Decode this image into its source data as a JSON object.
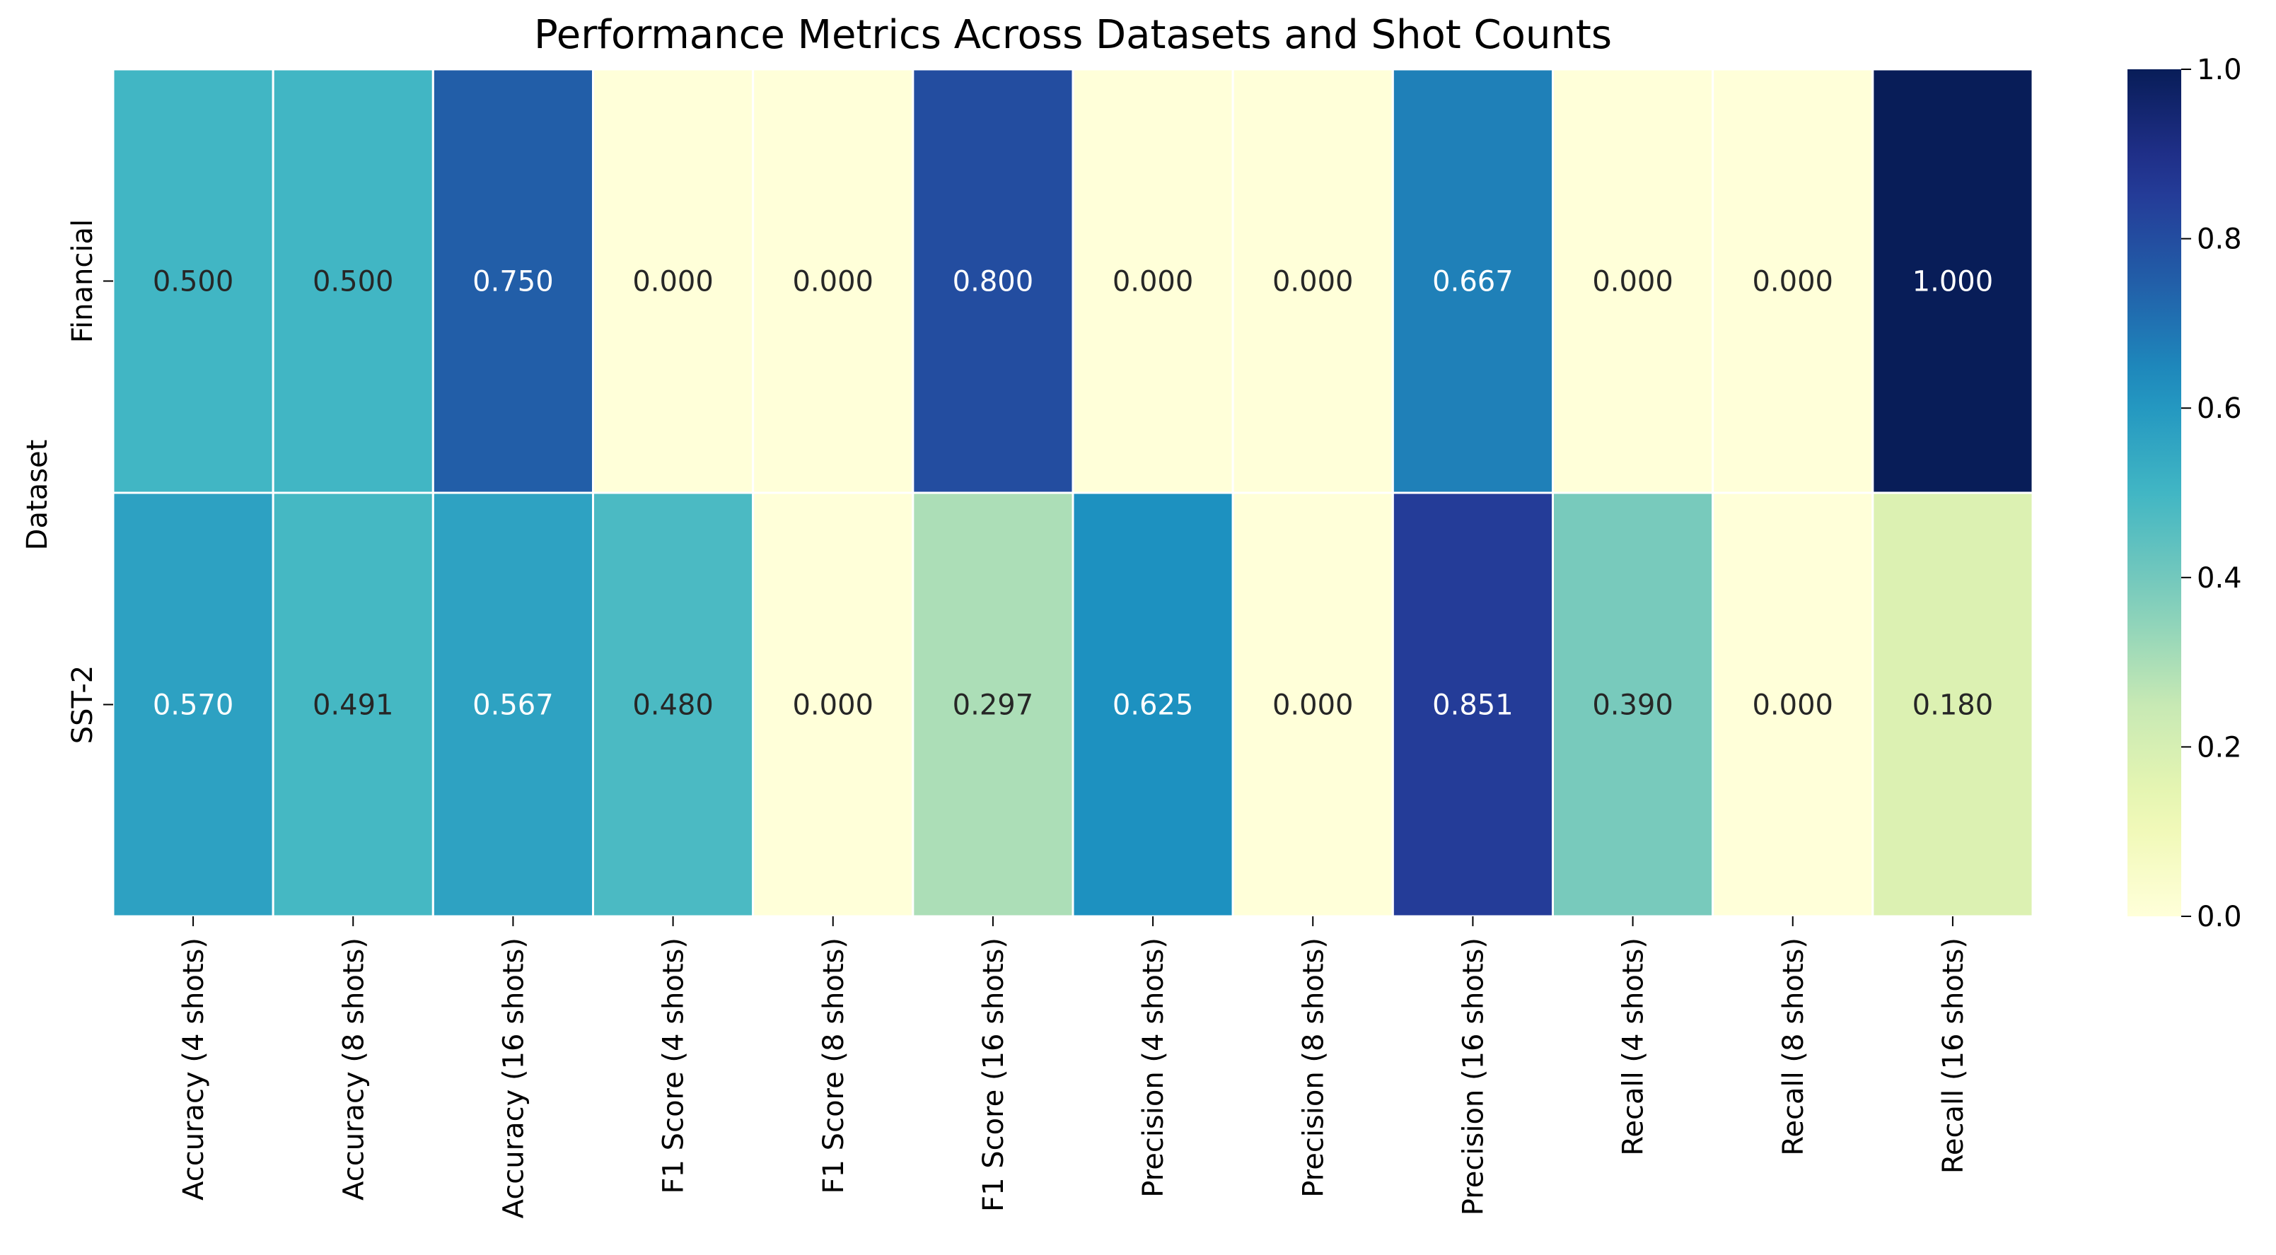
{
  "chart_data": {
    "type": "heatmap",
    "title": "Performance Metrics Across Datasets and Shot Counts",
    "xlabel": "",
    "ylabel": "Dataset",
    "rows": [
      "Financial",
      "SST-2"
    ],
    "columns": [
      "Accuracy (4 shots)",
      "Accuracy (8 shots)",
      "Accuracy (16 shots)",
      "F1 Score (4 shots)",
      "F1 Score (8 shots)",
      "F1 Score (16 shots)",
      "Precision (4 shots)",
      "Precision (8 shots)",
      "Precision (16 shots)",
      "Recall (4 shots)",
      "Recall (8 shots)",
      "Recall (16 shots)"
    ],
    "values": [
      [
        0.5,
        0.5,
        0.75,
        0.0,
        0.0,
        0.8,
        0.0,
        0.0,
        0.667,
        0.0,
        0.0,
        1.0
      ],
      [
        0.57,
        0.491,
        0.567,
        0.48,
        0.0,
        0.297,
        0.625,
        0.0,
        0.851,
        0.39,
        0.0,
        0.18
      ]
    ],
    "value_format": "0.000",
    "colormap": "YlGnBu",
    "vmin": 0.0,
    "vmax": 1.0,
    "colorbar_ticks": [
      "0.0",
      "0.2",
      "0.4",
      "0.6",
      "0.8",
      "1.0"
    ],
    "colorbar_position": "right",
    "grid": false
  }
}
